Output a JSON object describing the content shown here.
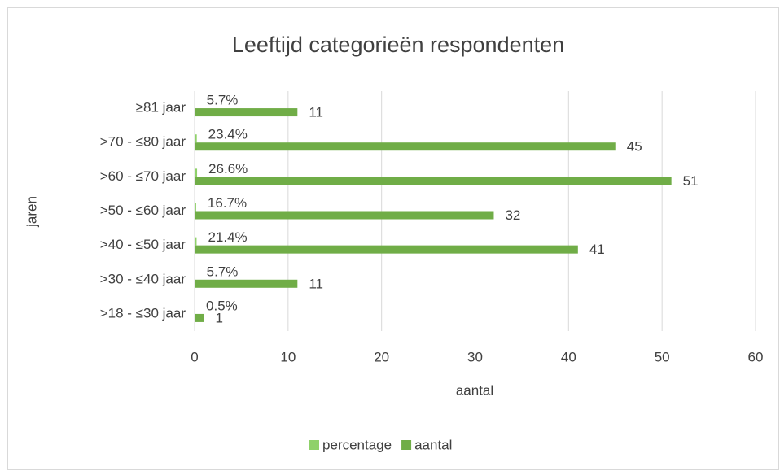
{
  "chart_data": {
    "type": "bar",
    "orientation": "horizontal",
    "title": "Leeftijd categorieën respondenten",
    "x_label": "aantal",
    "y_label": "jaren",
    "categories": [
      ">18 - ≤30 jaar",
      ">30 - ≤40 jaar",
      ">40 - ≤50 jaar",
      ">50 - ≤60 jaar",
      ">60 - ≤70 jaar",
      ">70 - ≤80 jaar",
      "≥81 jaar"
    ],
    "series": [
      {
        "name": "percentage",
        "color": "#8fd16a",
        "values": [
          0.005,
          0.057,
          0.214,
          0.167,
          0.266,
          0.234,
          0.057
        ],
        "value_labels": [
          "0.5%",
          "5.7%",
          "21.4%",
          "16.7%",
          "26.6%",
          "23.4%",
          "5.7%"
        ]
      },
      {
        "name": "aantal",
        "color": "#70ad47",
        "values": [
          1,
          11,
          41,
          32,
          51,
          45,
          11
        ]
      }
    ],
    "xlim": [
      0,
      60
    ],
    "xticks": [
      0,
      10,
      20,
      30,
      40,
      50,
      60
    ],
    "grid": true,
    "legend": "bottom"
  }
}
